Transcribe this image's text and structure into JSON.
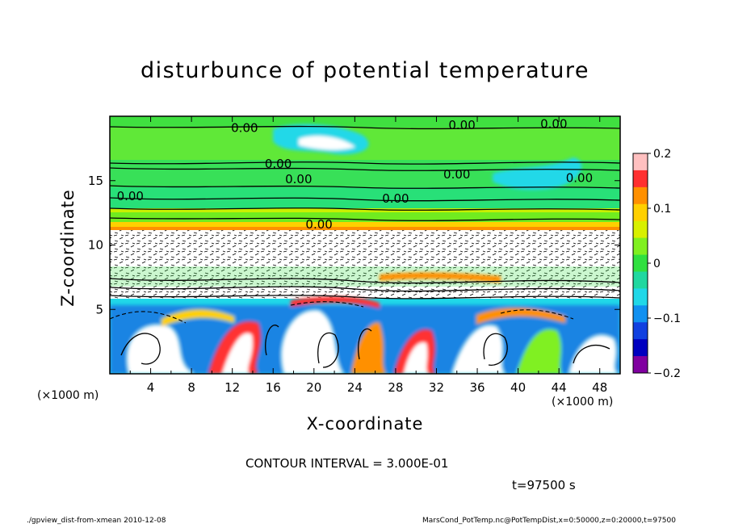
{
  "chart_data": {
    "type": "heatmap",
    "title": "disturbunce of potential temperature",
    "xlabel": "X-coordinate",
    "ylabel": "Z-coordinate",
    "x_unit_left": "(×1000 m)",
    "x_unit_right": "(×1000 m)",
    "xlim": [
      0,
      50
    ],
    "ylim": [
      0,
      20
    ],
    "x_ticks": [
      4,
      8,
      12,
      16,
      20,
      24,
      28,
      32,
      36,
      40,
      44,
      48
    ],
    "y_ticks": [
      5,
      10,
      15
    ],
    "colorbar": {
      "range": [
        -0.2,
        0.2
      ],
      "ticks": [
        0.2,
        0.1,
        0,
        -0.1,
        -0.2
      ],
      "tick_labels": [
        "0.2",
        "0.1",
        "0",
        "−0.1",
        "−0.2"
      ],
      "colors": [
        "#ffc0c0",
        "#ff3030",
        "#ff9000",
        "#ffd000",
        "#d8f000",
        "#80f020",
        "#30e040",
        "#20d8a0",
        "#20d8e8",
        "#1090f0",
        "#1040e0",
        "#0000c0",
        "#8000a0"
      ]
    },
    "contour_labels": [
      {
        "text": "0.00",
        "x": 13.2,
        "z": 19.1
      },
      {
        "text": "0.00",
        "x": 34.5,
        "z": 19.3
      },
      {
        "text": "0.00",
        "x": 43.5,
        "z": 19.4
      },
      {
        "text": "0.00",
        "x": 16.5,
        "z": 16.3
      },
      {
        "text": "0.00",
        "x": 34.0,
        "z": 15.5
      },
      {
        "text": "0.00",
        "x": 18.5,
        "z": 15.1
      },
      {
        "text": "0.00",
        "x": 46.0,
        "z": 15.2
      },
      {
        "text": "0.00",
        "x": 2.0,
        "z": 13.8
      },
      {
        "text": "0.00",
        "x": 28.0,
        "z": 13.6
      },
      {
        "text": "0.00",
        "x": 20.5,
        "z": 11.6
      }
    ],
    "contour_interval": "CONTOUR INTERVAL = 3.000E-01",
    "time_label": "t=97500 s"
  },
  "footer": {
    "left": "./gpview_dist-from-xmean   2010-12-08",
    "right": "MarsCond_PotTemp.nc@PotTempDist,x=0:50000,z=0:20000,t=97500"
  }
}
